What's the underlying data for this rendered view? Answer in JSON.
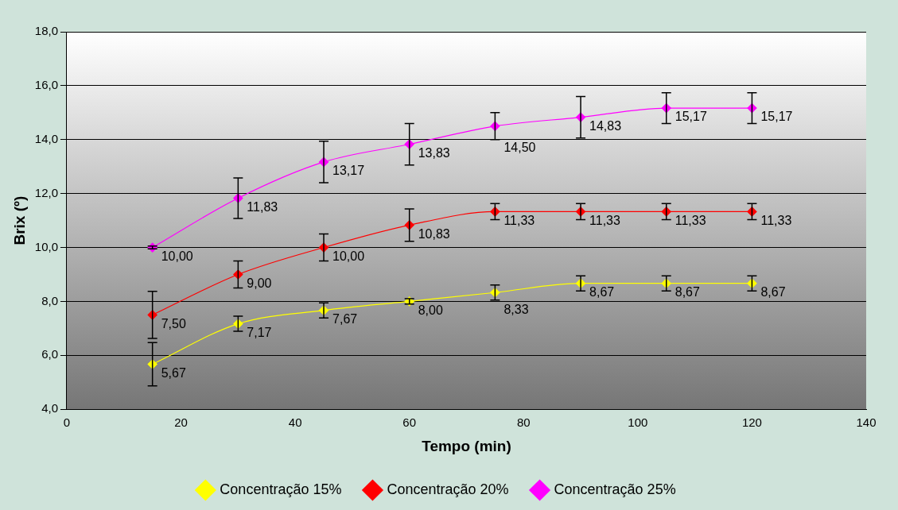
{
  "chart_data": {
    "type": "line",
    "xlabel": "Tempo (min)",
    "ylabel": "Brix (º)",
    "x": [
      15,
      30,
      45,
      60,
      75,
      90,
      105,
      120
    ],
    "xlim": [
      0,
      140
    ],
    "xticks": [
      0,
      20,
      40,
      60,
      80,
      100,
      120,
      140
    ],
    "ylim": [
      4,
      18
    ],
    "yticks": [
      {
        "value": 4,
        "label": "4,0"
      },
      {
        "value": 6,
        "label": "6,0"
      },
      {
        "value": 8,
        "label": "8,0"
      },
      {
        "value": 10,
        "label": "10,0"
      },
      {
        "value": 12,
        "label": "12,0"
      },
      {
        "value": 14,
        "label": "14,0"
      },
      {
        "value": 16,
        "label": "16,0"
      },
      {
        "value": 18,
        "label": "18,0"
      }
    ],
    "grid": "y",
    "legend": "bottom",
    "marker": "diamond",
    "line_style": "solid",
    "series": [
      {
        "name": "Concentração 15%",
        "color": "#ffff00",
        "values": [
          5.67,
          7.17,
          7.67,
          8.0,
          8.33,
          8.67,
          8.67,
          8.67
        ],
        "errors": [
          0.8,
          0.28,
          0.28,
          0.1,
          0.28,
          0.28,
          0.28,
          0.28
        ],
        "value_labels": [
          "5,67",
          "7,17",
          "7,67",
          "8,00",
          "8,33",
          "8,67",
          "8,67",
          "8,67"
        ]
      },
      {
        "name": "Concentração 20%",
        "color": "#ff0000",
        "values": [
          7.5,
          9.0,
          10.0,
          10.83,
          11.33,
          11.33,
          11.33,
          11.33
        ],
        "errors": [
          0.87,
          0.5,
          0.5,
          0.6,
          0.3,
          0.3,
          0.3,
          0.3
        ],
        "value_labels": [
          "7,50",
          "9,00",
          "10,00",
          "10,83",
          "11,33",
          "11,33",
          "11,33",
          "11,33"
        ]
      },
      {
        "name": "Concentração 25%",
        "color": "#ff00ff",
        "values": [
          10.0,
          11.83,
          13.17,
          13.83,
          14.5,
          14.83,
          15.17,
          15.17
        ],
        "errors": [
          0.05,
          0.75,
          0.77,
          0.77,
          0.5,
          0.77,
          0.57,
          0.57
        ],
        "value_labels": [
          "10,00",
          "11,83",
          "13,17",
          "13,83",
          "14,50",
          "14,83",
          "15,17",
          "15,17"
        ]
      }
    ]
  }
}
